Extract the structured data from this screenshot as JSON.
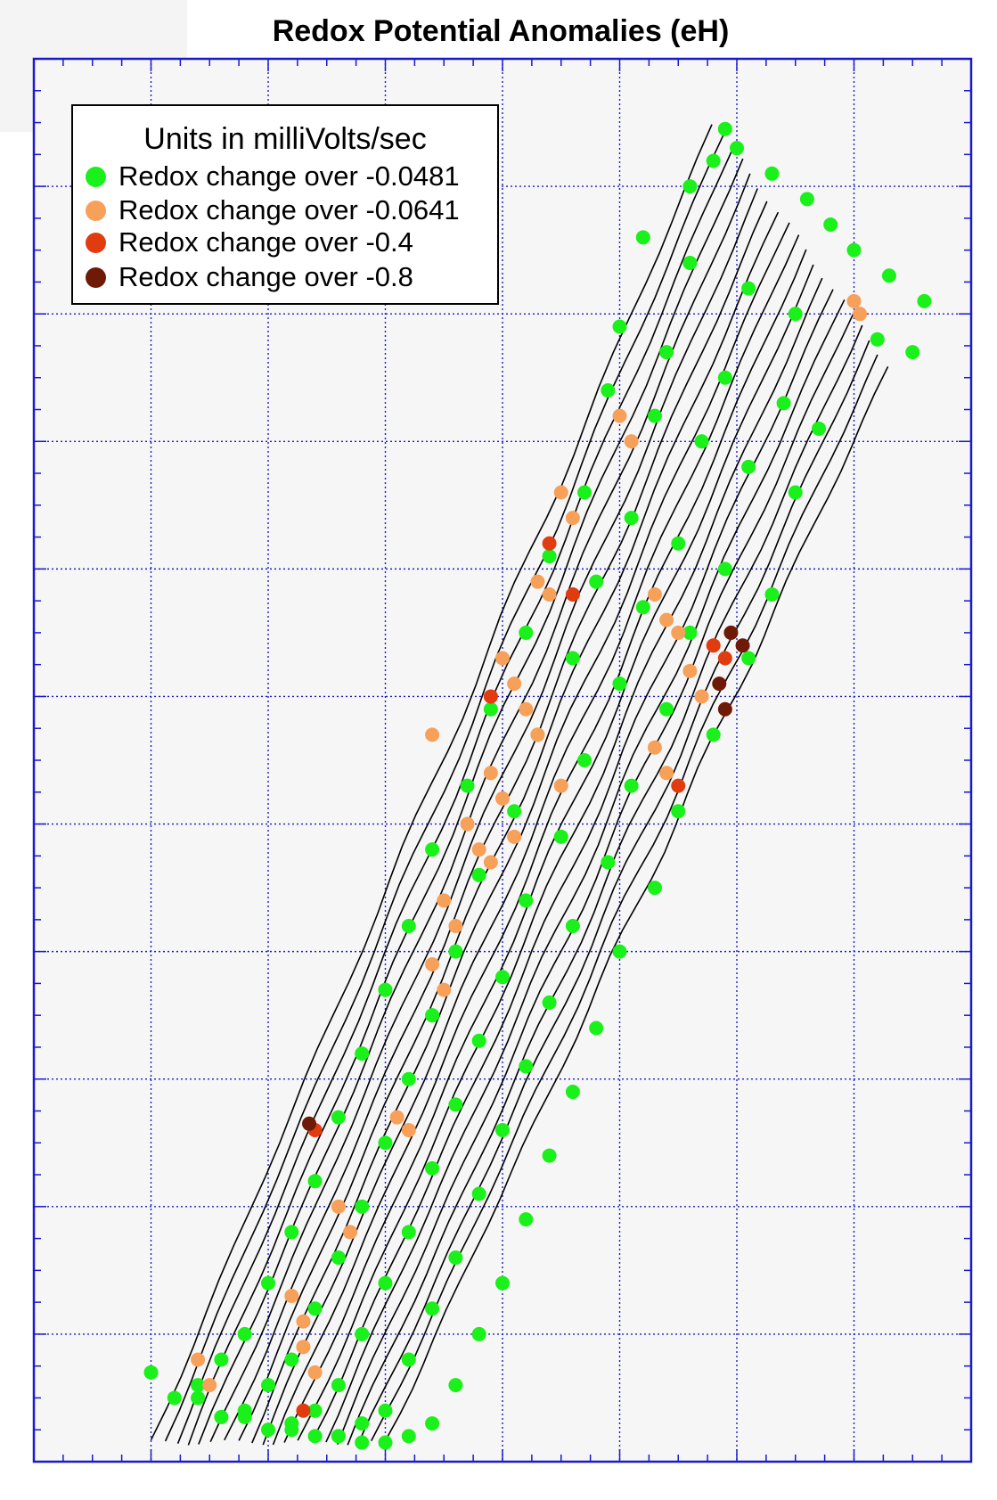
{
  "title": "Redox Potential Anomalies (eH)",
  "legend": {
    "title": "Units in milliVolts/sec",
    "items": [
      {
        "label": "Redox change over -0.0481",
        "color": "#1af01a"
      },
      {
        "label": "Redox change over -0.0641",
        "color": "#f7a05a"
      },
      {
        "label": "Redox change over -0.4",
        "color": "#e03c10"
      },
      {
        "label": "Redox change over -0.8",
        "color": "#6e1a06"
      }
    ]
  },
  "chart_data": {
    "type": "scatter",
    "title": "Redox Potential Anomalies (eH)",
    "xlabel": "",
    "ylabel": "",
    "grid": true,
    "legend_position": "top-left",
    "xlim": [
      0,
      8
    ],
    "ylim": [
      0,
      11
    ],
    "track_lines": 20,
    "series": [
      {
        "name": "Redox change over -0.0481",
        "color": "#1af01a",
        "x": [
          5.9,
          6.0,
          5.6,
          5.8,
          6.3,
          6.6,
          6.8,
          7.0,
          7.3,
          7.6,
          5.2,
          5.6,
          6.1,
          6.5,
          7.2,
          7.5,
          5.0,
          5.4,
          5.9,
          6.4,
          6.7,
          4.9,
          5.3,
          5.7,
          6.1,
          6.5,
          4.7,
          5.1,
          5.5,
          5.9,
          6.3,
          4.4,
          4.8,
          5.2,
          5.6,
          6.1,
          4.2,
          4.6,
          5.0,
          5.4,
          5.8,
          3.9,
          4.3,
          4.7,
          5.1,
          5.5,
          3.7,
          4.1,
          4.5,
          4.9,
          5.3,
          3.4,
          3.8,
          4.2,
          4.6,
          5.0,
          3.2,
          3.6,
          4.0,
          4.4,
          4.8,
          3.0,
          3.4,
          3.8,
          4.2,
          4.6,
          2.8,
          3.2,
          3.6,
          4.0,
          4.4,
          2.6,
          3.0,
          3.4,
          3.8,
          4.2,
          2.4,
          2.8,
          3.2,
          3.6,
          4.0,
          2.2,
          2.6,
          3.0,
          3.4,
          3.8,
          2.0,
          2.4,
          2.8,
          3.2,
          3.6,
          1.8,
          2.2,
          2.6,
          3.0,
          3.4,
          1.6,
          2.0,
          2.4,
          2.8,
          3.2,
          1.4,
          1.8,
          2.2,
          2.6,
          3.0,
          1.2,
          1.6,
          2.0,
          2.4,
          2.8,
          1.0,
          1.4,
          1.8,
          2.2,
          2.6
        ],
        "y": [
          10.45,
          10.3,
          10.0,
          10.2,
          10.1,
          9.9,
          9.7,
          9.5,
          9.3,
          9.1,
          9.6,
          9.4,
          9.2,
          9.0,
          8.8,
          8.7,
          8.9,
          8.7,
          8.5,
          8.3,
          8.1,
          8.4,
          8.2,
          8.0,
          7.8,
          7.6,
          7.6,
          7.4,
          7.2,
          7.0,
          6.8,
          7.1,
          6.9,
          6.7,
          6.5,
          6.3,
          6.5,
          6.3,
          6.1,
          5.9,
          5.7,
          5.9,
          5.7,
          5.5,
          5.3,
          5.1,
          5.3,
          5.1,
          4.9,
          4.7,
          4.5,
          4.8,
          4.6,
          4.4,
          4.2,
          4.0,
          4.2,
          4.0,
          3.8,
          3.6,
          3.4,
          3.7,
          3.5,
          3.3,
          3.1,
          2.9,
          3.2,
          3.0,
          2.8,
          2.6,
          2.4,
          2.7,
          2.5,
          2.3,
          2.1,
          1.9,
          2.2,
          2.0,
          1.8,
          1.6,
          1.4,
          1.8,
          1.6,
          1.4,
          1.2,
          1.0,
          1.4,
          1.2,
          1.0,
          0.8,
          0.6,
          1.0,
          0.8,
          0.6,
          0.4,
          0.3,
          0.8,
          0.6,
          0.4,
          0.3,
          0.2,
          0.6,
          0.4,
          0.3,
          0.2,
          0.15,
          0.5,
          0.35,
          0.25,
          0.2,
          0.15,
          0.7,
          0.5,
          0.35,
          0.25,
          0.2
        ]
      },
      {
        "name": "Redox change over -0.0641",
        "color": "#f7a05a",
        "x": [
          7.0,
          7.05,
          5.0,
          5.1,
          4.5,
          4.6,
          4.3,
          4.4,
          5.3,
          5.4,
          5.5,
          4.0,
          4.1,
          5.6,
          5.7,
          4.2,
          4.3,
          3.4,
          5.3,
          5.4,
          3.9,
          4.0,
          4.5,
          3.7,
          3.8,
          4.1,
          3.5,
          3.6,
          3.9,
          3.4,
          3.5,
          3.1,
          3.2,
          2.6,
          2.7,
          2.2,
          2.3,
          1.4,
          1.5,
          2.3,
          2.4
        ],
        "y": [
          9.1,
          9.0,
          8.2,
          8.0,
          7.6,
          7.4,
          6.9,
          6.8,
          6.8,
          6.6,
          6.5,
          6.3,
          6.1,
          6.2,
          6.0,
          5.9,
          5.7,
          5.7,
          5.6,
          5.4,
          5.4,
          5.2,
          5.3,
          5.0,
          4.8,
          4.9,
          4.4,
          4.2,
          4.7,
          3.9,
          3.7,
          2.7,
          2.6,
          2.0,
          1.8,
          1.3,
          1.1,
          0.8,
          0.6,
          0.9,
          0.7
        ]
      },
      {
        "name": "Redox change over -0.4",
        "color": "#e03c10",
        "x": [
          4.4,
          4.6,
          3.9,
          5.8,
          5.9,
          5.5,
          2.4,
          2.3
        ],
        "y": [
          7.2,
          6.8,
          6.0,
          6.4,
          6.3,
          5.3,
          2.6,
          0.4
        ]
      },
      {
        "name": "Redox change over -0.8",
        "color": "#6e1a06",
        "x": [
          5.95,
          6.05,
          5.85,
          5.9,
          2.35
        ],
        "y": [
          6.5,
          6.4,
          6.1,
          5.9,
          2.65
        ]
      }
    ]
  }
}
